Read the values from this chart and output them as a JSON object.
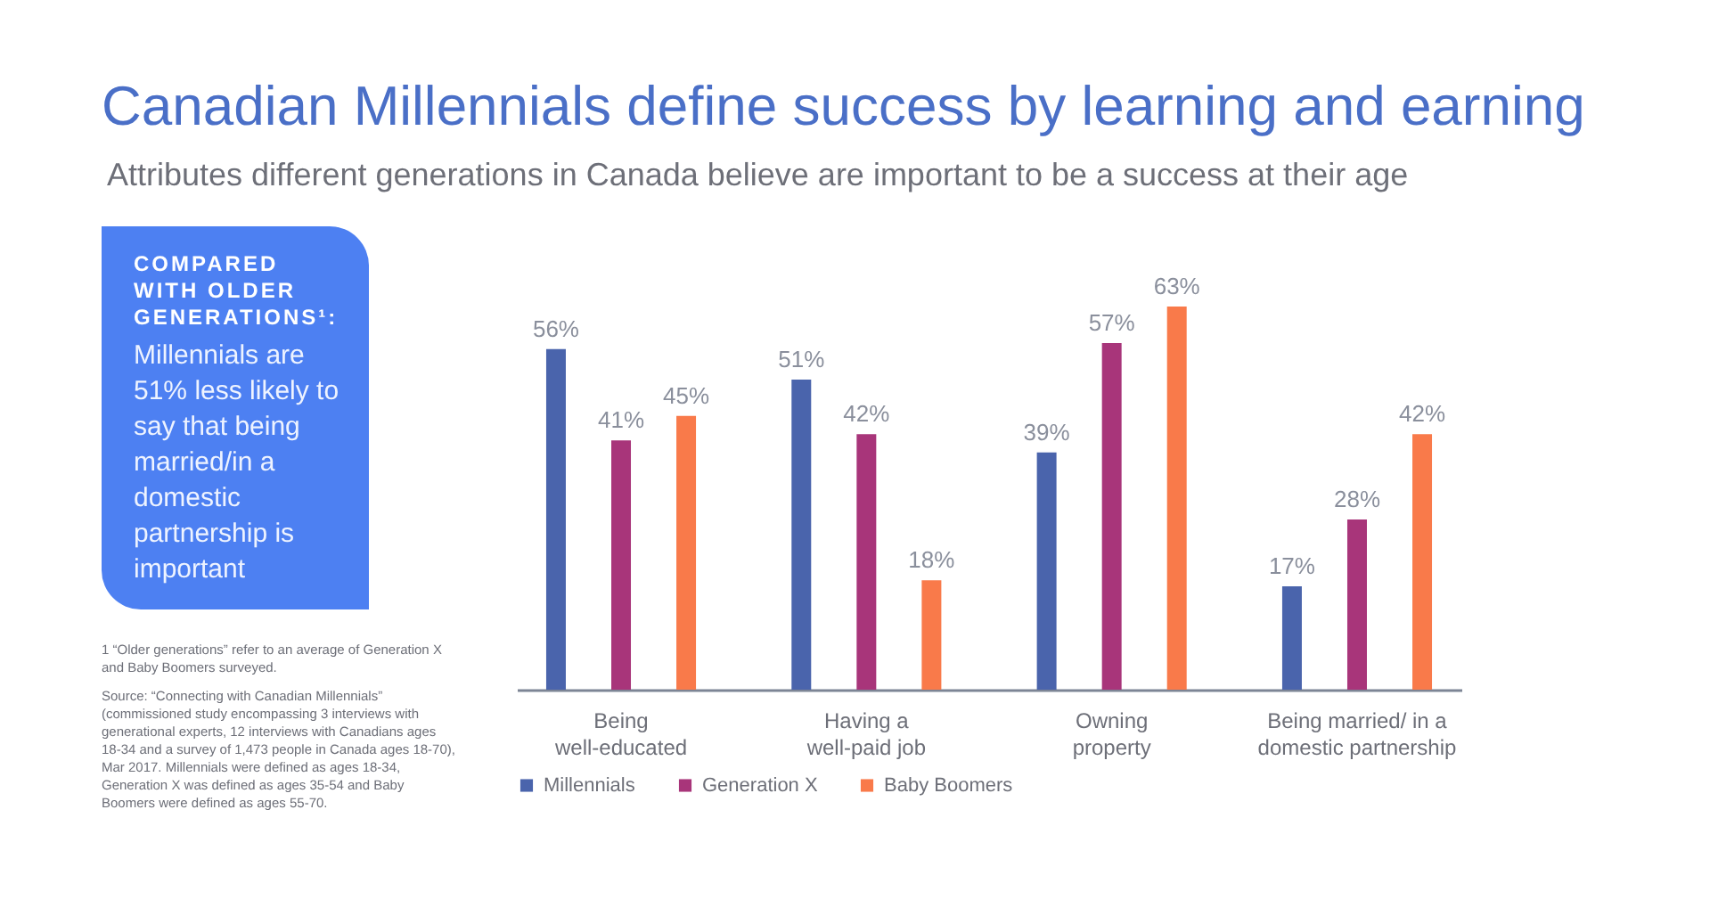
{
  "chart_data": {
    "type": "bar",
    "title": "Canadian Millennials define success by learning and earning",
    "subtitle": "Attributes different generations in Canada believe are important to be a success at their age",
    "categories": [
      "Being well-educated",
      "Having a well-paid job",
      "Owning property",
      "Being married/ in a domestic partnership"
    ],
    "series": [
      {
        "name": "Millennials",
        "color": "#4a64ac",
        "values": [
          56,
          51,
          39,
          17
        ],
        "value_labels": [
          "56%",
          "51%",
          "39%",
          "17%"
        ]
      },
      {
        "name": "Generation X",
        "color": "#a8357a",
        "values": [
          41,
          42,
          57,
          28
        ],
        "value_labels": [
          "41%",
          "42%",
          "57%",
          "28%"
        ]
      },
      {
        "name": "Baby Boomers",
        "color": "#f97a4a",
        "values": [
          45,
          18,
          63,
          42
        ],
        "value_labels": [
          "45%",
          "18%",
          "63%",
          "42%"
        ]
      }
    ],
    "legend": "bottom",
    "grid": false,
    "annotations": [
      "COMPARED WITH OLDER GENERATIONS¹:",
      "Millennials are 51% less likely to say that being married/in a domestic partnership is important",
      "1 “Older generations” refer to an average of Generation X and Baby Boomers surveyed.",
      "Source: “Connecting with Canadian Millennials” (commissioned study encompassing 3 interviews with generational experts, 12 interviews with Canadians ages 18-34 and a survey of 1,473 people in Canada ages 18-70), Mar 2017. Millennials were defined as ages 18-34, Generation X was defined as ages 35-54 and Baby Boomers were defined as ages 55-70."
    ]
  }
}
